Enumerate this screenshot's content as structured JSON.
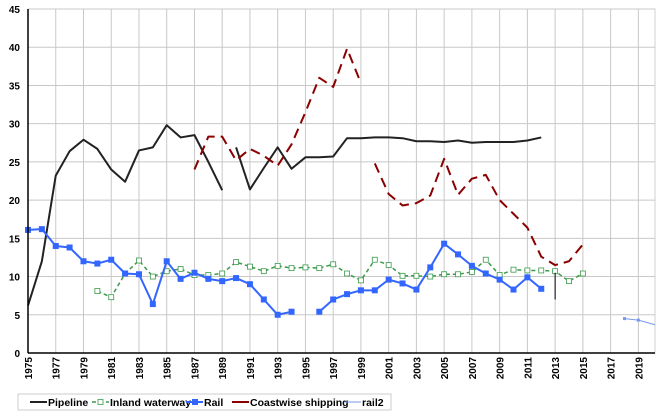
{
  "chart_data": {
    "type": "line",
    "title": "",
    "xlabel": "",
    "ylabel": "",
    "xlim": [
      1975,
      2020.2
    ],
    "ylim": [
      0,
      45
    ],
    "y_ticks": [
      "0",
      "5",
      "10",
      "15",
      "20",
      "25",
      "30",
      "35",
      "40",
      "45"
    ],
    "x_ticks": [
      "1975",
      "1977",
      "1979",
      "1981",
      "1983",
      "1985",
      "1987",
      "1989",
      "1991",
      "1993",
      "1995",
      "1997",
      "1999",
      "2001",
      "2003",
      "2005",
      "2007",
      "2009",
      "2011",
      "2013",
      "2015",
      "2017",
      "2019"
    ],
    "grid": true,
    "legend_position": "bottom",
    "series": [
      {
        "name": "Pipeline",
        "color": "#222222",
        "style": "solid",
        "marker": "none",
        "segments": [
          [
            [
              1975,
              6.2
            ],
            [
              1976,
              12
            ],
            [
              1977,
              23.2
            ],
            [
              1978,
              26.4
            ],
            [
              1979,
              27.9
            ],
            [
              1980,
              26.7
            ],
            [
              1981,
              24
            ],
            [
              1982,
              22.4
            ],
            [
              1983,
              26.5
            ],
            [
              1984,
              26.9
            ],
            [
              1985,
              29.8
            ],
            [
              1986,
              28.2
            ],
            [
              1987,
              28.5
            ],
            [
              1988,
              25
            ],
            [
              1989,
              21.3
            ]
          ],
          [
            [
              1990,
              26.9
            ],
            [
              1991,
              21.4
            ],
            [
              1992,
              24.2
            ],
            [
              1993,
              26.9
            ],
            [
              1994,
              24.1
            ],
            [
              1995,
              25.6
            ],
            [
              1996,
              25.6
            ],
            [
              1997,
              25.7
            ],
            [
              1998,
              28.1
            ],
            [
              1999,
              28.1
            ],
            [
              2000,
              28.2
            ],
            [
              2001,
              28.2
            ],
            [
              2002,
              28.1
            ],
            [
              2003,
              27.7
            ],
            [
              2004,
              27.7
            ],
            [
              2005,
              27.6
            ],
            [
              2006,
              27.8
            ],
            [
              2007,
              27.5
            ],
            [
              2008,
              27.6
            ],
            [
              2009,
              27.6
            ],
            [
              2010,
              27.6
            ],
            [
              2011,
              27.8
            ],
            [
              2012,
              28.2
            ]
          ]
        ]
      },
      {
        "name": "Inland waterway",
        "color": "#3a9a4a",
        "style": "dashed",
        "marker": "open-square",
        "segments": [
          [
            [
              1980,
              8.1
            ],
            [
              1981,
              7.3
            ],
            [
              1982,
              10.4
            ],
            [
              1983,
              12.1
            ],
            [
              1984,
              10
            ],
            [
              1985,
              10.7
            ],
            [
              1986,
              11
            ],
            [
              1987,
              10.2
            ],
            [
              1988,
              10.2
            ],
            [
              1989,
              10.4
            ],
            [
              1990,
              11.9
            ],
            [
              1991,
              11.3
            ],
            [
              1992,
              10.7
            ],
            [
              1993,
              11.4
            ],
            [
              1994,
              11.1
            ],
            [
              1995,
              11.2
            ],
            [
              1996,
              11.1
            ],
            [
              1997,
              11.6
            ],
            [
              1998,
              10.4
            ],
            [
              1999,
              9.5
            ],
            [
              2000,
              12.2
            ],
            [
              2001,
              11.5
            ],
            [
              2002,
              10.1
            ],
            [
              2003,
              10.1
            ],
            [
              2004,
              10
            ],
            [
              2005,
              10.3
            ],
            [
              2006,
              10.3
            ],
            [
              2007,
              10.6
            ],
            [
              2008,
              12.2
            ],
            [
              2009,
              10.2
            ],
            [
              2010,
              10.9
            ],
            [
              2011,
              10.8
            ],
            [
              2012,
              10.8
            ],
            [
              2013,
              10.7
            ],
            [
              2014,
              9.4
            ],
            [
              2015,
              10.4
            ]
          ]
        ]
      },
      {
        "name": "Rail",
        "color": "#3366ff",
        "style": "solid",
        "marker": "filled-square",
        "segments": [
          [
            [
              1975,
              16.1
            ],
            [
              1976,
              16.2
            ],
            [
              1977,
              14
            ],
            [
              1978,
              13.8
            ],
            [
              1979,
              12
            ],
            [
              1980,
              11.7
            ],
            [
              1981,
              12.2
            ],
            [
              1982,
              10.4
            ],
            [
              1983,
              10.3
            ],
            [
              1984,
              6.4
            ],
            [
              1985,
              12
            ],
            [
              1986,
              9.7
            ],
            [
              1987,
              10.5
            ],
            [
              1988,
              9.7
            ],
            [
              1989,
              9.4
            ],
            [
              1990,
              9.8
            ],
            [
              1991,
              9
            ],
            [
              1992,
              7
            ],
            [
              1993,
              5
            ],
            [
              1994,
              5.4
            ]
          ],
          [
            [
              1996,
              5.4
            ],
            [
              1997,
              7
            ],
            [
              1998,
              7.7
            ],
            [
              1999,
              8.2
            ],
            [
              2000,
              8.2
            ],
            [
              2001,
              9.6
            ],
            [
              2002,
              9.1
            ],
            [
              2003,
              8.3
            ],
            [
              2004,
              11.2
            ],
            [
              2005,
              14.3
            ],
            [
              2006,
              12.9
            ],
            [
              2007,
              11.4
            ],
            [
              2008,
              10.4
            ],
            [
              2009,
              9.6
            ],
            [
              2010,
              8.3
            ],
            [
              2011,
              9.9
            ],
            [
              2012,
              8.4
            ]
          ]
        ]
      },
      {
        "name": "Coastwise shipping",
        "color": "#8b0000",
        "style": "longdash",
        "marker": "none",
        "segments": [
          [
            [
              1987,
              24
            ],
            [
              1988,
              28.3
            ],
            [
              1989,
              28.3
            ],
            [
              1990,
              25.2
            ],
            [
              1991,
              26.7
            ],
            [
              1992,
              25.8
            ],
            [
              1993,
              24.5
            ],
            [
              1994,
              27.3
            ],
            [
              1995,
              31.5
            ],
            [
              1996,
              36
            ],
            [
              1997,
              34.8
            ],
            [
              1998,
              39.8
            ],
            [
              1999,
              35.3
            ]
          ],
          [
            [
              2000,
              24.8
            ],
            [
              2001,
              20.8
            ],
            [
              2002,
              19.3
            ],
            [
              2003,
              19.6
            ],
            [
              2004,
              20.6
            ],
            [
              2005,
              25.4
            ],
            [
              2006,
              20.7
            ],
            [
              2007,
              22.8
            ],
            [
              2008,
              23.3
            ],
            [
              2009,
              20
            ],
            [
              2010,
              18.2
            ],
            [
              2011,
              16.4
            ],
            [
              2012,
              12.6
            ],
            [
              2013,
              11.5
            ],
            [
              2014,
              12
            ],
            [
              2015,
              14.2
            ]
          ]
        ]
      },
      {
        "name": "rail2",
        "color": "#7799ee",
        "style": "thin",
        "marker": "small-square",
        "segments": [
          [
            [
              2018,
              4.5
            ],
            [
              2019,
              4.3
            ],
            [
              2020.2,
              3.7
            ]
          ]
        ]
      }
    ],
    "annotations": [
      {
        "type": "vertical-mark",
        "x": 2013,
        "y_from": 7,
        "y_to": 10.5,
        "color": "#000000"
      }
    ]
  }
}
